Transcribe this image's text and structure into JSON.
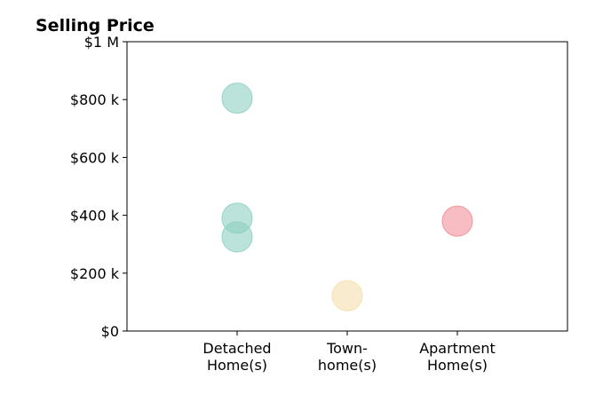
{
  "chart_data": {
    "type": "scatter",
    "title": "Selling Price",
    "xlabel": "",
    "ylabel": "",
    "categories": [
      [
        "Detached",
        "Home(s)"
      ],
      [
        "Town-",
        "home(s)"
      ],
      [
        "Apartment",
        "Home(s)"
      ]
    ],
    "xlim": [
      0,
      4
    ],
    "ylim": [
      0,
      1000000
    ],
    "yticks": [
      0,
      200000,
      400000,
      600000,
      800000,
      1000000
    ],
    "ytick_labels": [
      "$0",
      "$200 k",
      "$400 k",
      "$600 k",
      "$800 k",
      "$1 M"
    ],
    "grid": false,
    "legend": "none",
    "colors": [
      "#8ccfc1",
      "#f4dfaa",
      "#f28e97"
    ],
    "points": [
      {
        "category": 0,
        "value": 805000
      },
      {
        "category": 0,
        "value": 390000
      },
      {
        "category": 0,
        "value": 325000
      },
      {
        "category": 1,
        "value": 122000
      },
      {
        "category": 2,
        "value": 380000
      }
    ]
  }
}
